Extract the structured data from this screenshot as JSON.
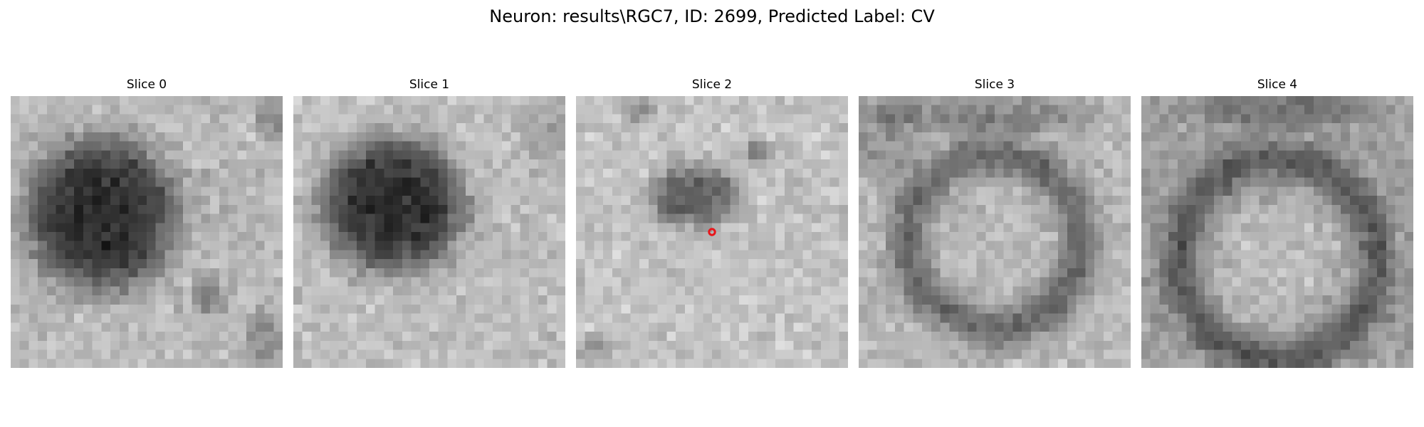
{
  "figure": {
    "title": "Neuron: results\\RGC7, ID: 2699, Predicted Label: CV",
    "marker_color": "#e8161b",
    "grid_size": 30
  },
  "panels": [
    {
      "title": "Slice 0",
      "has_marker": false
    },
    {
      "title": "Slice 1",
      "has_marker": false
    },
    {
      "title": "Slice 2",
      "has_marker": true
    },
    {
      "title": "Slice 3",
      "has_marker": false
    },
    {
      "title": "Slice 4",
      "has_marker": false
    }
  ]
}
